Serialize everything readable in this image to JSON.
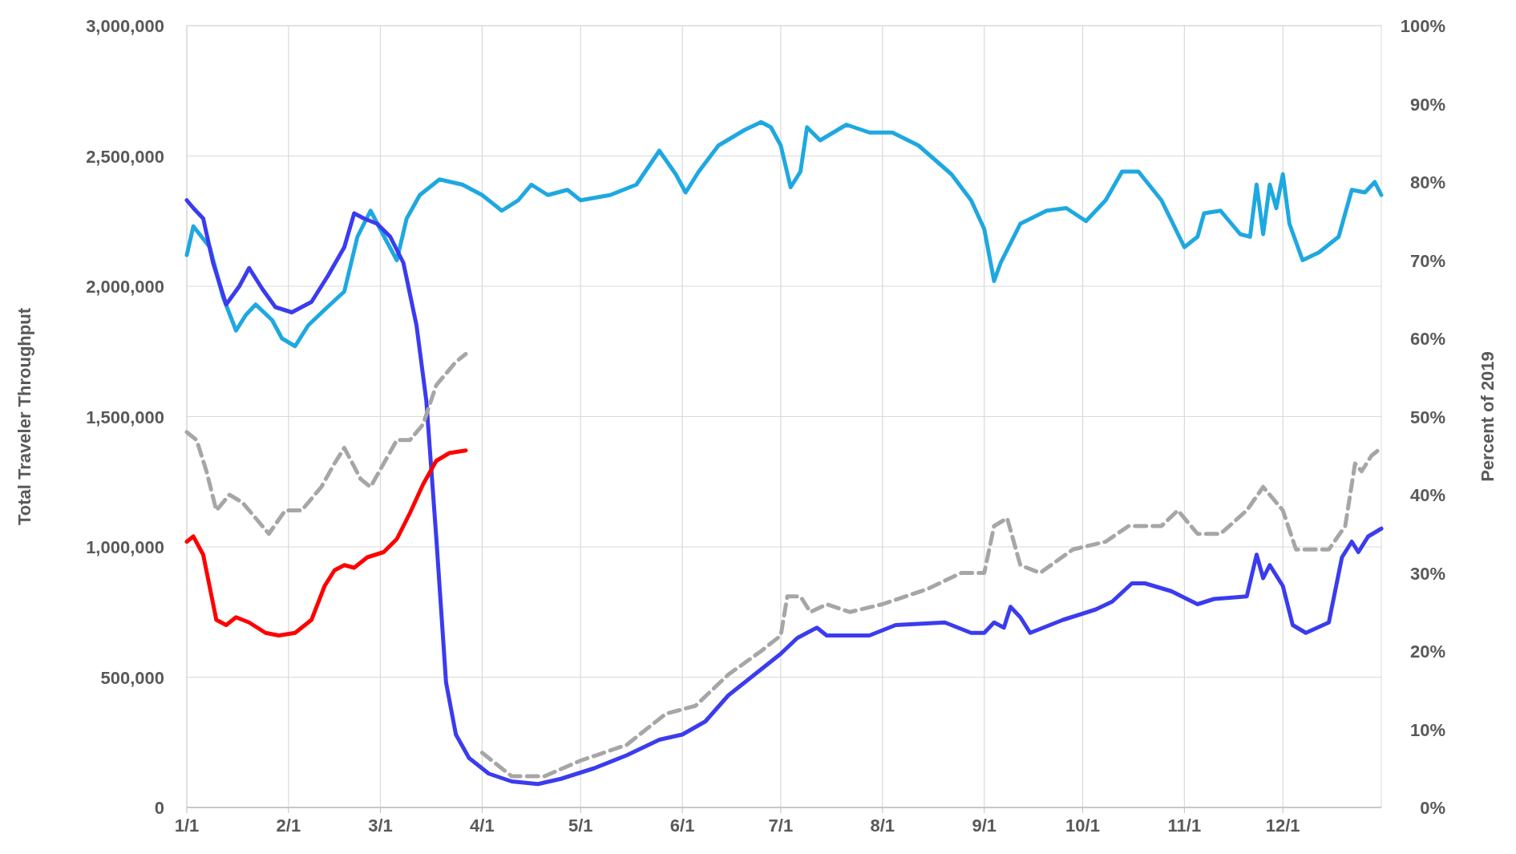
{
  "chart_data": {
    "type": "line",
    "ylabel": "Total Traveler Throughput",
    "y2label": "Percent of 2019",
    "xlim": [
      "--01-01",
      "--12-31"
    ],
    "xticks": [
      {
        "value": "--01-01",
        "label": "1/1"
      },
      {
        "value": "--02-01",
        "label": "2/1"
      },
      {
        "value": "--03-01",
        "label": "3/1"
      },
      {
        "value": "--04-01",
        "label": "4/1"
      },
      {
        "value": "--05-01",
        "label": "5/1"
      },
      {
        "value": "--06-01",
        "label": "6/1"
      },
      {
        "value": "--07-01",
        "label": "7/1"
      },
      {
        "value": "--08-01",
        "label": "8/1"
      },
      {
        "value": "--09-01",
        "label": "9/1"
      },
      {
        "value": "--10-01",
        "label": "10/1"
      },
      {
        "value": "--11-01",
        "label": "11/1"
      },
      {
        "value": "--12-01",
        "label": "12/1"
      }
    ],
    "ylim": [
      0,
      3000000
    ],
    "yticks": [
      {
        "value": 0,
        "label": "0"
      },
      {
        "value": 500000,
        "label": "500,000"
      },
      {
        "value": 1000000,
        "label": "1,000,000"
      },
      {
        "value": 1500000,
        "label": "1,500,000"
      },
      {
        "value": 2000000,
        "label": "2,000,000"
      },
      {
        "value": 2500000,
        "label": "2,500,000"
      },
      {
        "value": 3000000,
        "label": "3,000,000"
      }
    ],
    "y2lim": [
      0,
      100
    ],
    "y2ticks": [
      {
        "value": 0,
        "label": "0%"
      },
      {
        "value": 10,
        "label": "10%"
      },
      {
        "value": 20,
        "label": "20%"
      },
      {
        "value": 30,
        "label": "30%"
      },
      {
        "value": 40,
        "label": "40%"
      },
      {
        "value": 50,
        "label": "50%"
      },
      {
        "value": 60,
        "label": "60%"
      },
      {
        "value": 70,
        "label": "70%"
      },
      {
        "value": 80,
        "label": "80%"
      },
      {
        "value": 90,
        "label": "90%"
      },
      {
        "value": 100,
        "label": "100%"
      }
    ],
    "grid": true,
    "series": [
      {
        "color": "#1fa8e0",
        "x": [
          "--01-01",
          "--01-03",
          "--01-08",
          "--01-12",
          "--01-16",
          "--01-19",
          "--01-22",
          "--01-27",
          "--01-30",
          "--02-03",
          "--02-07",
          "--02-12",
          "--02-18",
          "--02-22",
          "--02-26",
          "--03-03",
          "--03-06",
          "--03-09",
          "--03-13",
          "--03-19",
          "--03-26",
          "--04-01",
          "--04-07",
          "--04-12",
          "--04-16",
          "--04-21",
          "--04-27",
          "--05-01",
          "--05-10",
          "--05-18",
          "--05-25",
          "--05-30",
          "--06-02",
          "--06-06",
          "--06-12",
          "--06-20",
          "--06-25",
          "--06-28",
          "--07-01",
          "--07-04",
          "--07-07",
          "--07-09",
          "--07-13",
          "--07-21",
          "--07-28",
          "--08-04",
          "--08-12",
          "--08-22",
          "--08-28",
          "--09-01",
          "--09-04",
          "--09-06",
          "--09-12",
          "--09-20",
          "--09-26",
          "--10-02",
          "--10-08",
          "--10-13",
          "--10-18",
          "--10-25",
          "--11-01",
          "--11-05",
          "--11-07",
          "--11-12",
          "--11-18",
          "--11-21",
          "--11-23",
          "--11-25",
          "--11-27",
          "--11-29",
          "--12-01",
          "--12-03",
          "--12-07",
          "--12-12",
          "--12-18",
          "--12-22",
          "--12-26",
          "--12-29",
          "--12-31"
        ],
        "values": [
          2120000,
          2230000,
          2150000,
          1960000,
          1830000,
          1890000,
          1930000,
          1870000,
          1800000,
          1770000,
          1850000,
          1910000,
          1980000,
          2190000,
          2290000,
          2170000,
          2100000,
          2260000,
          2350000,
          2410000,
          2390000,
          2350000,
          2290000,
          2330000,
          2390000,
          2350000,
          2370000,
          2330000,
          2350000,
          2390000,
          2520000,
          2430000,
          2360000,
          2440000,
          2540000,
          2600000,
          2630000,
          2610000,
          2540000,
          2380000,
          2440000,
          2610000,
          2560000,
          2620000,
          2590000,
          2590000,
          2540000,
          2430000,
          2330000,
          2220000,
          2020000,
          2090000,
          2240000,
          2290000,
          2300000,
          2250000,
          2330000,
          2440000,
          2440000,
          2330000,
          2150000,
          2190000,
          2280000,
          2290000,
          2200000,
          2190000,
          2390000,
          2200000,
          2390000,
          2300000,
          2430000,
          2240000,
          2100000,
          2130000,
          2190000,
          2370000,
          2360000,
          2400000,
          2350000
        ]
      },
      {
        "color": "#3b3bef",
        "x": [
          "--01-01",
          "--01-03",
          "--01-06",
          "--01-09",
          "--01-13",
          "--01-17",
          "--01-20",
          "--01-24",
          "--01-28",
          "--02-02",
          "--02-08",
          "--02-13",
          "--02-18",
          "--02-21",
          "--02-24",
          "--02-28",
          "--03-04",
          "--03-08",
          "--03-12",
          "--03-15",
          "--03-18",
          "--03-21",
          "--03-24",
          "--03-28",
          "--04-03",
          "--04-10",
          "--04-18",
          "--04-25",
          "--05-05",
          "--05-15",
          "--05-25",
          "--06-01",
          "--06-08",
          "--06-15",
          "--06-22",
          "--07-01",
          "--07-06",
          "--07-12",
          "--07-15",
          "--07-28",
          "--08-05",
          "--08-20",
          "--08-28",
          "--09-01",
          "--09-04",
          "--09-07",
          "--09-09",
          "--09-12",
          "--09-15",
          "--09-25",
          "--10-05",
          "--10-10",
          "--10-16",
          "--10-20",
          "--10-28",
          "--11-05",
          "--11-10",
          "--11-20",
          "--11-23",
          "--11-25",
          "--11-27",
          "--11-29",
          "--12-01",
          "--12-04",
          "--12-08",
          "--12-15",
          "--12-19",
          "--12-22",
          "--12-24",
          "--12-27",
          "--12-31"
        ],
        "values": [
          2330000,
          2300000,
          2260000,
          2090000,
          1930000,
          2000000,
          2070000,
          1990000,
          1920000,
          1900000,
          1940000,
          2040000,
          2150000,
          2280000,
          2260000,
          2240000,
          2190000,
          2090000,
          1850000,
          1560000,
          1040000,
          480000,
          280000,
          190000,
          130000,
          100000,
          90000,
          110000,
          150000,
          200000,
          260000,
          280000,
          330000,
          430000,
          500000,
          590000,
          650000,
          690000,
          660000,
          660000,
          700000,
          710000,
          670000,
          670000,
          710000,
          690000,
          770000,
          730000,
          670000,
          720000,
          760000,
          790000,
          860000,
          860000,
          830000,
          780000,
          800000,
          810000,
          970000,
          880000,
          930000,
          890000,
          850000,
          700000,
          670000,
          710000,
          960000,
          1020000,
          980000,
          1040000,
          1070000
        ]
      },
      {
        "color": "#ff0000",
        "x": [
          "--01-01",
          "--01-03",
          "--01-06",
          "--01-10",
          "--01-13",
          "--01-16",
          "--01-20",
          "--01-25",
          "--01-29",
          "--02-03",
          "--02-08",
          "--02-12",
          "--02-15",
          "--02-18",
          "--02-21",
          "--02-25",
          "--03-02",
          "--03-06",
          "--03-10",
          "--03-14",
          "--03-18",
          "--03-22",
          "--03-27"
        ],
        "values": [
          1020000,
          1040000,
          970000,
          720000,
          700000,
          730000,
          710000,
          670000,
          660000,
          670000,
          720000,
          850000,
          910000,
          930000,
          920000,
          960000,
          980000,
          1030000,
          1130000,
          1240000,
          1330000,
          1360000,
          1370000
        ]
      },
      {
        "color": "#a6a6a6",
        "axis": "y2",
        "line_style": "dashed",
        "x": [
          "--01-01",
          "--01-04",
          "--01-07",
          "--01-10",
          "--01-14",
          "--01-18",
          "--01-22",
          "--01-26",
          "--01-31",
          "--02-05",
          "--02-11",
          "--02-15",
          "--02-18",
          "--02-23",
          "--02-26",
          "--03-02",
          "--03-06",
          "--03-10",
          "--03-14",
          "--03-18",
          "--03-24",
          "--03-27",
          "--03-29",
          "--04-01",
          "--04-10",
          "--04-20",
          "--05-01",
          "--05-15",
          "--05-27",
          "--06-05",
          "--06-15",
          "--06-25",
          "--07-01",
          "--07-03",
          "--07-07",
          "--07-10",
          "--07-15",
          "--07-22",
          "--08-01",
          "--08-15",
          "--08-25",
          "--09-01",
          "--09-04",
          "--09-08",
          "--09-12",
          "--09-18",
          "--09-28",
          "--10-08",
          "--10-15",
          "--10-25",
          "--10-30",
          "--11-05",
          "--11-12",
          "--11-20",
          "--11-25",
          "--12-01",
          "--12-05",
          "--12-15",
          "--12-20",
          "--12-23",
          "--12-25",
          "--12-28",
          "--12-31"
        ],
        "values": [
          48,
          47,
          43,
          38,
          40,
          39,
          37,
          35,
          38,
          38,
          41,
          44,
          46,
          42,
          41,
          44,
          47,
          47,
          49,
          54,
          57,
          58,
          null,
          7,
          4,
          4,
          6,
          8,
          12,
          13,
          17,
          20,
          22,
          27,
          27,
          25,
          26,
          25,
          26,
          28,
          30,
          30,
          36,
          37,
          31,
          30,
          33,
          34,
          36,
          36,
          38,
          35,
          35,
          38,
          41,
          38,
          33,
          33,
          36,
          44,
          43,
          45,
          46
        ]
      }
    ]
  }
}
